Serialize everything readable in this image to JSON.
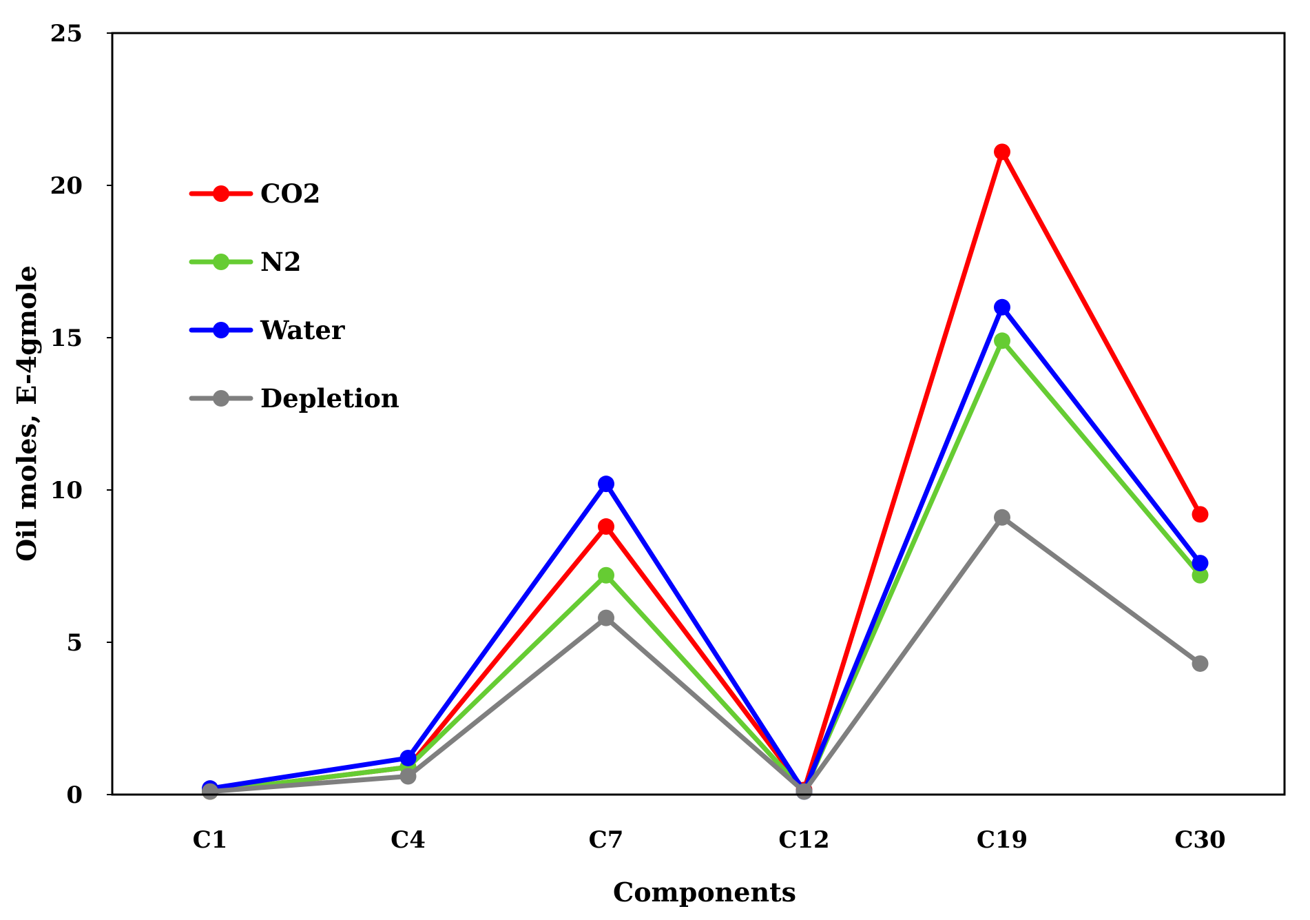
{
  "chart_data": {
    "type": "line",
    "title": "",
    "xlabel": "Components",
    "ylabel": "Oil moles, E-4gmole",
    "categories": [
      "C1",
      "C4",
      "C7",
      "C12",
      "C19",
      "C30"
    ],
    "ylim": [
      0,
      25
    ],
    "yticks": [
      "0",
      "5",
      "10",
      "15",
      "20",
      "25"
    ],
    "grid": false,
    "legend_position": "top-left",
    "series": [
      {
        "name": "CO2",
        "color": "#ff0000",
        "values": [
          0.1,
          0.9,
          8.8,
          0.15,
          21.1,
          9.2
        ]
      },
      {
        "name": "N2",
        "color": "#66cc33",
        "values": [
          0.1,
          0.9,
          7.2,
          0.1,
          14.9,
          7.2
        ]
      },
      {
        "name": "Water",
        "color": "#0000ff",
        "values": [
          0.2,
          1.2,
          10.2,
          0.1,
          16.0,
          7.6
        ]
      },
      {
        "name": "Depletion",
        "color": "#7f7f7f",
        "values": [
          0.1,
          0.6,
          5.8,
          0.1,
          9.1,
          4.3
        ]
      }
    ]
  }
}
